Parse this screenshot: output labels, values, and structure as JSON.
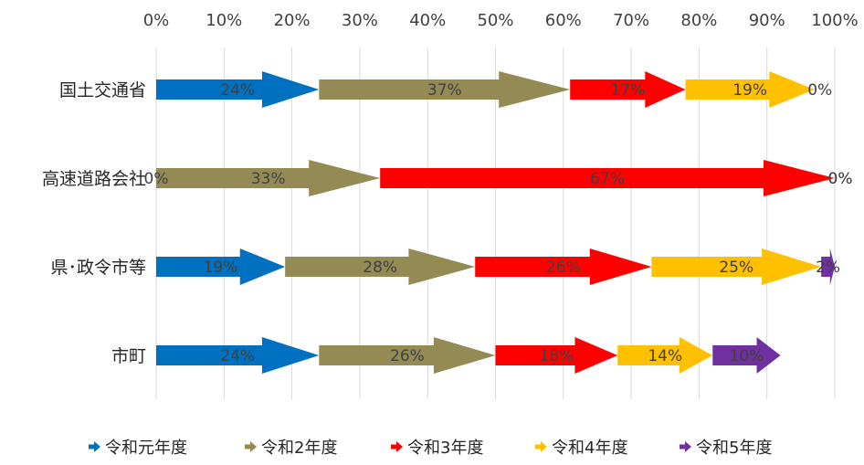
{
  "chart_data": {
    "type": "bar",
    "stacked": true,
    "orientation": "horizontal",
    "x_ticks": [
      "0%",
      "10%",
      "20%",
      "30%",
      "40%",
      "50%",
      "60%",
      "70%",
      "80%",
      "90%",
      "100%"
    ],
    "xlim": [
      0,
      100
    ],
    "grid": true,
    "legend_position": "bottom",
    "categories": [
      "国土交通省",
      "高速道路会社",
      "県･政令市等",
      "市町"
    ],
    "series": [
      {
        "name": "令和元年度",
        "color": "#0070c0",
        "values": [
          24,
          0,
          19,
          24
        ],
        "labels": [
          "24%",
          "0%",
          "19%",
          "24%"
        ]
      },
      {
        "name": "令和2年度",
        "color": "#948a54",
        "values": [
          37,
          33,
          28,
          26
        ],
        "labels": [
          "37%",
          "33%",
          "28%",
          "26%"
        ]
      },
      {
        "name": "令和3年度",
        "color": "#ff0000",
        "values": [
          17,
          67,
          26,
          18
        ],
        "labels": [
          "17%",
          "67%",
          "26%",
          "18%"
        ]
      },
      {
        "name": "令和4年度",
        "color": "#ffc000",
        "values": [
          19,
          0,
          25,
          14
        ],
        "labels": [
          "19%",
          "0%",
          "25%",
          "14%"
        ]
      },
      {
        "name": "令和5年度",
        "color": "#7030a0",
        "values": [
          0,
          0,
          2,
          10
        ],
        "labels": [
          "0%",
          "0%",
          "2%",
          "10%"
        ]
      }
    ]
  }
}
